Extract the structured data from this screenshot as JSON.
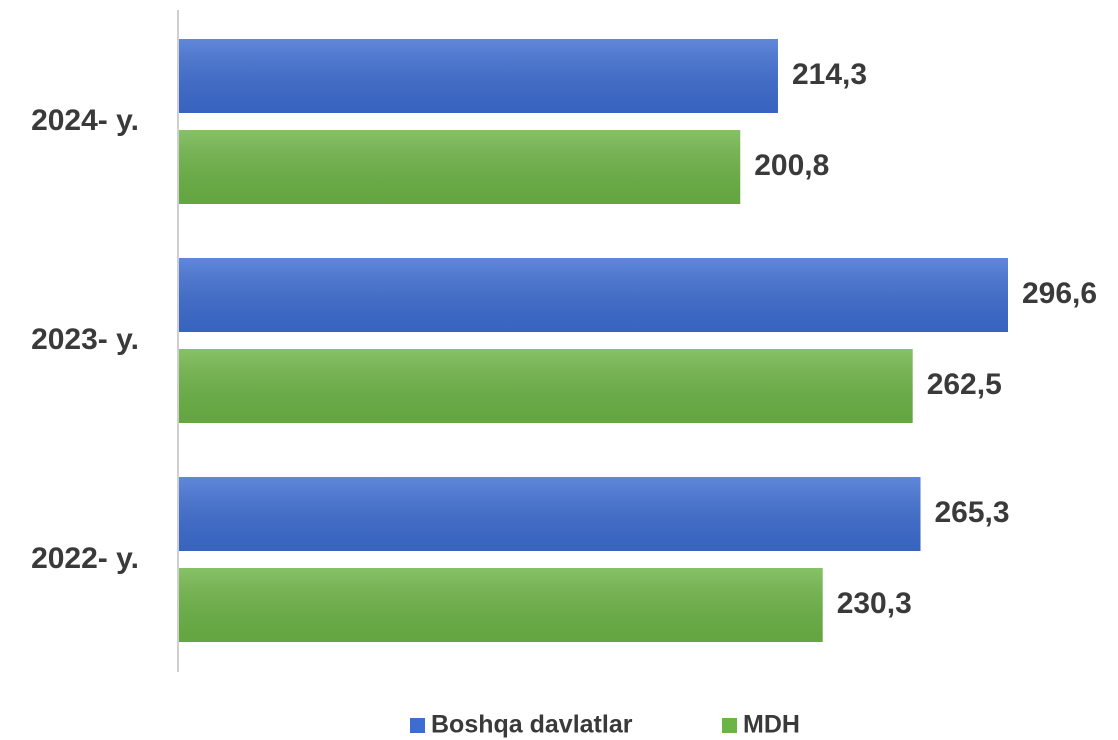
{
  "chart_data": {
    "type": "hbar",
    "categories": [
      "2024- y.",
      "2023- y.",
      "2022- y."
    ],
    "series": [
      {
        "name": "Boshqa davlatlar",
        "color": "#3d6dd1",
        "values": [
          214.3,
          296.6,
          265.3
        ],
        "value_labels": [
          "214,3",
          "296,6",
          "265,3"
        ]
      },
      {
        "name": "MDH",
        "color": "#6db446",
        "values": [
          200.8,
          262.5,
          230.3
        ],
        "value_labels": [
          "200,8",
          "262,5",
          "230,3"
        ]
      }
    ],
    "xlim": [
      0,
      300
    ],
    "legend": "bottom"
  }
}
